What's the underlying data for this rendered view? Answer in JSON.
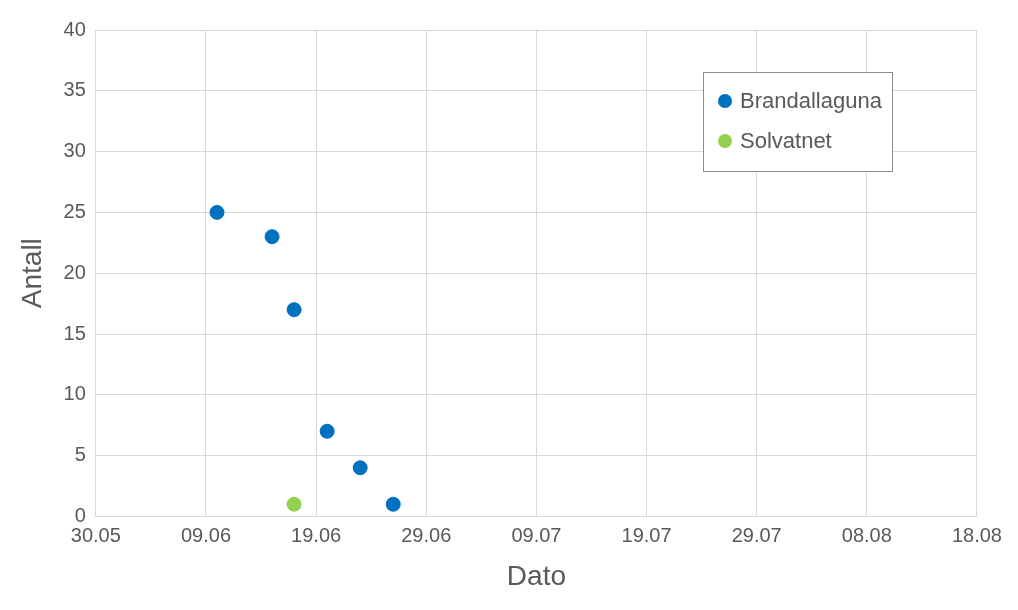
{
  "chart_data": {
    "type": "scatter",
    "xlabel": "Dato",
    "ylabel": "Antall",
    "xlim": [
      "--05-30",
      "--08-18"
    ],
    "xticks": [
      {
        "value": "--05-30",
        "label": "30.05"
      },
      {
        "value": "--06-09",
        "label": "09.06"
      },
      {
        "value": "--06-19",
        "label": "19.06"
      },
      {
        "value": "--06-29",
        "label": "29.06"
      },
      {
        "value": "--07-09",
        "label": "09.07"
      },
      {
        "value": "--07-19",
        "label": "19.07"
      },
      {
        "value": "--07-29",
        "label": "29.07"
      },
      {
        "value": "--08-08",
        "label": "08.08"
      },
      {
        "value": "--08-18",
        "label": "18.08"
      }
    ],
    "ylim": [
      0,
      40
    ],
    "yticks": [
      0,
      5,
      10,
      15,
      20,
      25,
      30,
      35,
      40
    ],
    "grid": true,
    "legend": "top right",
    "marker": "circle",
    "series": [
      {
        "name": "Brandallaguna",
        "color": "#0070c0",
        "x": [
          "--06-10",
          "--06-15",
          "--06-17",
          "--06-20",
          "--06-23",
          "--06-26"
        ],
        "values": [
          25,
          23,
          17,
          7,
          4,
          1
        ]
      },
      {
        "name": "Solvatnet",
        "color": "#92d050",
        "x": [
          "--06-17"
        ],
        "values": [
          1
        ]
      }
    ]
  }
}
